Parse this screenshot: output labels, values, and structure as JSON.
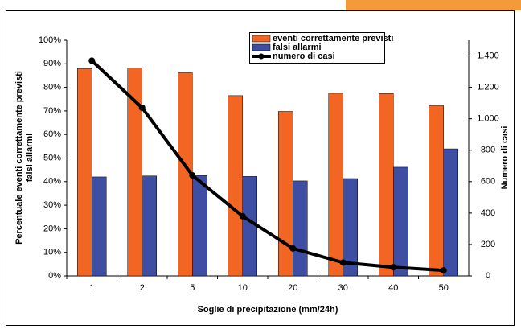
{
  "chart_data": {
    "type": "bar_line",
    "categories": [
      "1",
      "2",
      "5",
      "10",
      "20",
      "30",
      "40",
      "50"
    ],
    "series": [
      {
        "name": "eventi correttamente previsti",
        "color": "#f26522",
        "values": [
          88,
          88.3,
          86.2,
          76.5,
          69.8,
          77.5,
          77.4,
          72.2
        ]
      },
      {
        "name": "falsi allarmi",
        "color": "#3e4fa3",
        "values": [
          42,
          42.4,
          42.6,
          42.2,
          40.3,
          41.3,
          46.1,
          53.9
        ]
      },
      {
        "name": "numero di casi",
        "color": "#000000",
        "axis": "y2",
        "values": [
          1370,
          1070,
          640,
          380,
          175,
          85,
          55,
          35
        ]
      }
    ],
    "xlabel": "Soglie di precipitazione (mm/24h)",
    "ylabel": [
      "Percentuale eventi correttamente previsti",
      "falsi allarmi"
    ],
    "y2label": "Numero di casi",
    "ylim": [
      0,
      100
    ],
    "yticks": [
      {
        "value": 0,
        "label": "0%"
      },
      {
        "value": 10,
        "label": "10%"
      },
      {
        "value": 20,
        "label": "20%"
      },
      {
        "value": 30,
        "label": "30%"
      },
      {
        "value": 40,
        "label": "40%"
      },
      {
        "value": 50,
        "label": "50%"
      },
      {
        "value": 60,
        "label": "60%"
      },
      {
        "value": 70,
        "label": "70%"
      },
      {
        "value": 80,
        "label": "80%"
      },
      {
        "value": 90,
        "label": "90%"
      },
      {
        "value": 100,
        "label": "100%"
      }
    ],
    "y2lim": [
      0,
      1500
    ],
    "y2ticks": [
      0,
      200,
      400,
      600,
      800,
      {
        "value": 1000,
        "label": "1.000"
      },
      {
        "value": 1200,
        "label": "1.200"
      },
      {
        "value": 1400,
        "label": "1.400"
      }
    ]
  }
}
